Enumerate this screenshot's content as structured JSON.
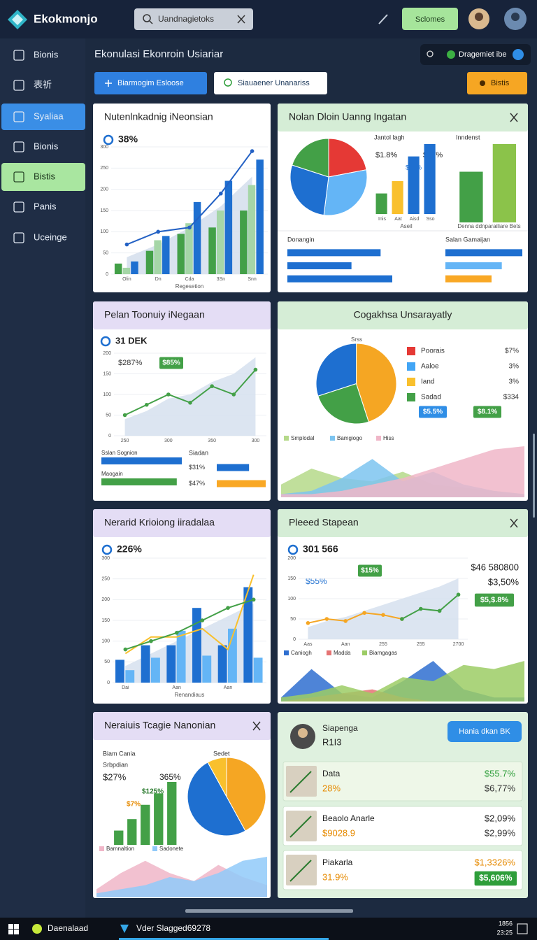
{
  "app": {
    "name": "Ekokmonjo",
    "search": "Uandnagietoks",
    "button": "Sclomes"
  },
  "sidebar": {
    "items": [
      "Bionis",
      "表祈",
      "Syaliaa",
      "Bionis",
      "Bistis",
      "Panis",
      "Uceinge"
    ],
    "active": 2,
    "highlight": 4
  },
  "header": {
    "title": "Ekonulasi Ekonroin Usiariar",
    "toolbar": "Dragemiet ibe",
    "buttons": [
      "Biarmogim Esloose",
      "Siauaener Unanariss",
      "Bistis"
    ]
  },
  "cards": [
    {
      "title": "Nutenlnkadnig iNeonsian",
      "header_color": "#ffffff",
      "texts": [
        "38%"
      ],
      "charts": [
        {
          "type": "combo",
          "categories": [
            "Olin",
            "Dn",
            "Cda",
            "3Sn",
            "Snn"
          ],
          "xlabel": "Regesetion",
          "ylim": [
            0,
            300
          ],
          "yticks": [
            0,
            50,
            100,
            150,
            200,
            250,
            300
          ],
          "series": [
            {
              "type": "area",
              "color": "#d3deec",
              "values": [
                40,
                70,
                110,
                160,
                230
              ]
            },
            {
              "type": "bar",
              "color": "#43a047",
              "values": [
                25,
                55,
                95,
                110,
                150
              ]
            },
            {
              "type": "bar",
              "color": "#a5d6a7",
              "values": [
                15,
                80,
                120,
                150,
                210
              ]
            },
            {
              "type": "bar",
              "color": "#1e6fd0",
              "values": [
                30,
                90,
                170,
                220,
                270
              ]
            },
            {
              "type": "line",
              "color": "#2361c4",
              "markers": true,
              "values": [
                70,
                100,
                110,
                190,
                290
              ]
            }
          ]
        }
      ]
    },
    {
      "title": "Nolan Dloin Uanng Ingatan",
      "header_color": "#d5edd6",
      "close": true,
      "texts": [
        "$1.8%",
        "$17%",
        "$37%"
      ],
      "charts": [
        {
          "type": "pie",
          "values": [
            22,
            30,
            28,
            20
          ],
          "colors": [
            "#e53935",
            "#64b5f6",
            "#1e6fd0",
            "#43a047"
          ]
        },
        {
          "type": "combo",
          "title": "Jantol lagh",
          "categories": [
            "Inis",
            "Aat",
            "Aisd",
            "Sso"
          ],
          "xlabel": "Aseil",
          "series": [
            {
              "type": "bar",
              "colors": [
                "#43a047",
                "#f9c02d",
                "#1e6fd0",
                "#1e6fd0"
              ],
              "values": [
                25,
                40,
                70,
                85
              ]
            }
          ]
        },
        {
          "type": "combo",
          "title": "Inndenst",
          "xlabel": "Denna ddnparailiare Bets",
          "series": [
            {
              "type": "bar",
              "colors": [
                "#43a047",
                "#8bc34a"
              ],
              "values": [
                55,
                85
              ]
            }
          ]
        },
        {
          "type": "hbar",
          "title": "Donangin",
          "values": [
            80,
            55,
            90
          ],
          "color": "#1e6fd0"
        },
        {
          "type": "hbar",
          "title": "Salan Gamaijan",
          "values": [
            75,
            55,
            45
          ],
          "colors": [
            "#1e6fd0",
            "#64b5f6",
            "#f9a825"
          ]
        }
      ]
    },
    {
      "title": "Pelan Toonuiy iNegaan",
      "header_color": "#e4ddf5",
      "texts": [
        "31 DEK",
        "$287%",
        "$85%"
      ],
      "charts": [
        {
          "type": "combo",
          "categories": [
            "250",
            null,
            "300",
            null,
            "350",
            null,
            "300"
          ],
          "ylim": [
            0,
            200
          ],
          "yticks": [
            0,
            50,
            100,
            150,
            200
          ],
          "series": [
            {
              "type": "area",
              "color": "#d6e0ee",
              "values": [
                40,
                60,
                90,
                100,
                130,
                150,
                190
              ]
            },
            {
              "type": "line",
              "color": "#43a047",
              "markers": true,
              "values": [
                50,
                75,
                100,
                80,
                120,
                100,
                160
              ]
            }
          ]
        },
        {
          "type": "hbar",
          "labels": [
            "Sslan Sognion",
            "Maogain"
          ],
          "values": [
            80,
            75
          ],
          "colors": [
            "#1e6fd0",
            "#43a047"
          ]
        },
        {
          "type": "hbar",
          "title": "Siadan",
          "value_labels": [
            "$31%",
            "$47%"
          ],
          "values": [
            31,
            47
          ],
          "colors": [
            "#1e6fd0",
            "#f9a825"
          ]
        }
      ]
    },
    {
      "title": "Cogakhsa Unsarayatly",
      "header_color": "#d5edd6",
      "title_center": true,
      "texts": [
        "Srss",
        "$5.5%",
        "$8.1%"
      ],
      "charts": [
        {
          "type": "pie",
          "values": [
            45,
            25,
            30
          ],
          "colors": [
            "#f5a623",
            "#43a047",
            "#1e6fd0"
          ]
        },
        {
          "type": "legend",
          "items": [
            {
              "name": "Poorais",
              "color": "#e53935",
              "value_label": "$7%"
            },
            {
              "name": "Aaloe",
              "color": "#42a5f5",
              "value_label": "3%"
            },
            {
              "name": "Iand",
              "color": "#f9c02d",
              "value_label": "3%"
            },
            {
              "name": "Sadad",
              "color": "#43a047",
              "value_label": "$334"
            }
          ]
        },
        {
          "type": "combo",
          "series": [
            {
              "name": "Smplodal",
              "type": "area",
              "color": "#b5d98a",
              "values": [
                20,
                45,
                30,
                25,
                40,
                20,
                15,
                10,
                5
              ]
            },
            {
              "name": "Bamgiogo",
              "type": "area",
              "color": "#7cc4f0",
              "values": [
                5,
                10,
                30,
                60,
                25,
                40,
                20,
                10,
                5
              ]
            },
            {
              "name": "Hiss",
              "type": "area",
              "color": "#f0b6c8",
              "values": [
                5,
                5,
                10,
                20,
                30,
                45,
                60,
                75,
                80
              ]
            }
          ]
        }
      ]
    },
    {
      "title": "Nerarid Krioiong iiradalaa",
      "header_color": "#e4ddf5",
      "texts": [
        "226%"
      ],
      "charts": [
        {
          "type": "combo",
          "categories": [
            "Dai",
            null,
            "Aan",
            null,
            "Aan",
            null
          ],
          "xlabel": "Renandiaus",
          "ylim": [
            0,
            300
          ],
          "yticks": [
            0,
            50,
            100,
            150,
            200,
            250,
            300
          ],
          "series": [
            {
              "type": "area",
              "color": "#d6e0ee",
              "values": [
                40,
                70,
                100,
                130,
                160,
                190
              ]
            },
            {
              "type": "bar",
              "color": "#1e6fd0",
              "values": [
                55,
                90,
                90,
                180,
                90,
                230
              ]
            },
            {
              "type": "bar",
              "color": "#64b5f6",
              "values": [
                30,
                60,
                125,
                65,
                130,
                60
              ]
            },
            {
              "type": "line",
              "color": "#f9c02d",
              "values": [
                70,
                110,
                110,
                130,
                80,
                260
              ]
            },
            {
              "type": "line",
              "color": "#43a047",
              "markers": true,
              "values": [
                80,
                100,
                120,
                150,
                180,
                200
              ]
            }
          ]
        }
      ]
    },
    {
      "title": "Pleeed Stapean",
      "header_color": "#d5edd6",
      "close": true,
      "texts": [
        "301 566",
        "$15%",
        "$55%",
        "$46 580800",
        "$3,50%",
        "$5,$.8%"
      ],
      "charts": [
        {
          "type": "combo",
          "categories": [
            "Aas",
            null,
            "Aan",
            null,
            "255",
            null,
            "255",
            null,
            "2700"
          ],
          "ylim": [
            0,
            200
          ],
          "yticks": [
            0,
            50,
            100,
            150,
            200
          ],
          "series": [
            {
              "type": "area",
              "color": "#d6e0ee",
              "values": [
                30,
                45,
                55,
                70,
                85,
                100,
                115,
                130,
                150
              ]
            },
            {
              "type": "line",
              "color": "#f5a623",
              "markers": true,
              "values": [
                40,
                50,
                45,
                65,
                60,
                50,
                null,
                null,
                null
              ]
            },
            {
              "type": "line",
              "color": "#43a047",
              "markers": true,
              "values": [
                null,
                null,
                null,
                null,
                null,
                50,
                75,
                70,
                110
              ]
            }
          ]
        },
        {
          "type": "combo",
          "series": [
            {
              "name": "Caniogh",
              "type": "area",
              "color": "#2f6fd0",
              "values": [
                5,
                40,
                10,
                5,
                25,
                50,
                15,
                5,
                5
              ]
            },
            {
              "name": "Madda",
              "type": "area",
              "color": "#e57373",
              "values": [
                0,
                5,
                10,
                15,
                5,
                0,
                0,
                0,
                0
              ]
            },
            {
              "name": "Biamgagas",
              "type": "area",
              "color": "#9ccc65",
              "values": [
                5,
                10,
                20,
                10,
                30,
                25,
                45,
                40,
                50
              ]
            }
          ]
        }
      ]
    },
    {
      "title": "Neraiuis Tcagie Nanonian",
      "header_color": "#e4ddf5",
      "close": true,
      "texts": [
        "Biam Cania",
        "Srbpdian",
        "$27%",
        "365%",
        "$125%",
        "$7%",
        "Sedet"
      ],
      "charts": [
        {
          "type": "combo",
          "series": [
            {
              "type": "bar",
              "color": "#43a047",
              "values": [
                25,
                45,
                70,
                90,
                110
              ]
            }
          ]
        },
        {
          "type": "pie",
          "values": [
            42,
            50,
            8
          ],
          "colors": [
            "#f5a623",
            "#1e6fd0",
            "#f9c02d"
          ]
        },
        {
          "type": "combo",
          "series": [
            {
              "name": "Bamnaltion",
              "type": "area",
              "color": "#f0b6c8",
              "values": [
                10,
                30,
                45,
                30,
                20,
                40,
                25,
                15
              ]
            },
            {
              "name": "Sadonete",
              "type": "area",
              "color": "#90caf9",
              "values": [
                5,
                10,
                15,
                25,
                20,
                30,
                45,
                50
              ]
            }
          ]
        }
      ]
    },
    {
      "header_color": "#dff1df",
      "name": "Siapenga",
      "id": "R1I3",
      "button": "Hania dkan BK",
      "rows": [
        {
          "name": "Data",
          "sub": "28%",
          "value": "$55.7%",
          "change": "$6,77%"
        },
        {
          "name": "Beaolo Anarle",
          "sub": "$9028.9",
          "value": "$2,09%",
          "change": "$2,99%"
        },
        {
          "name": "Piakarla",
          "sub": "31.9%",
          "value": "$1,3326%",
          "change": "$5,606%"
        }
      ]
    }
  ],
  "taskbar": {
    "start": "Daenalaad",
    "task": "Vder Slagged69278",
    "clock": [
      "1856",
      "23:25"
    ]
  }
}
